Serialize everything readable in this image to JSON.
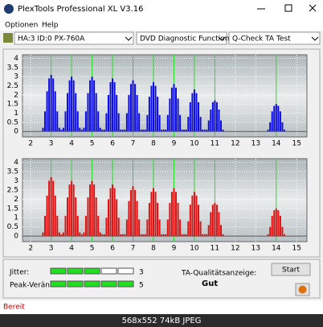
{
  "window": {
    "title": "PlexTools Professional XL V3.16",
    "menu": [
      "Optionen",
      "Help"
    ],
    "drive": "HA:3 ID:0 PX-760A",
    "function": "DVD Diagnostic Functions",
    "test": "Q-Check TA Test"
  },
  "chart_data": [
    {
      "type": "bar",
      "color": "#0a0ae6",
      "grid": true,
      "vlines": [
        3,
        4,
        5,
        6,
        7,
        8,
        9,
        10,
        11,
        14
      ],
      "vline_color": "#22dd22",
      "xlim": [
        1.6,
        15.5
      ],
      "ylim": [
        -0.3,
        4.2
      ],
      "xticks": [
        2,
        3,
        4,
        5,
        6,
        7,
        8,
        9,
        10,
        11,
        12,
        13,
        14,
        15
      ],
      "yticks": [
        0,
        0.5,
        1,
        1.5,
        2,
        2.5,
        3,
        3.5,
        4
      ],
      "x": [
        2.5,
        2.6,
        2.7,
        2.8,
        2.9,
        3.0,
        3.1,
        3.2,
        3.3,
        3.4,
        3.5,
        3.6,
        3.7,
        3.8,
        3.9,
        4.0,
        4.1,
        4.2,
        4.3,
        4.4,
        4.5,
        4.6,
        4.7,
        4.8,
        4.9,
        5.0,
        5.1,
        5.2,
        5.3,
        5.4,
        5.5,
        5.6,
        5.7,
        5.8,
        5.9,
        6.0,
        6.1,
        6.2,
        6.3,
        6.4,
        6.5,
        6.6,
        6.7,
        6.8,
        6.9,
        7.0,
        7.1,
        7.2,
        7.3,
        7.4,
        7.5,
        7.6,
        7.7,
        7.8,
        7.9,
        8.0,
        8.1,
        8.2,
        8.3,
        8.4,
        8.5,
        8.6,
        8.7,
        8.8,
        8.9,
        9.0,
        9.1,
        9.2,
        9.3,
        9.4,
        9.5,
        9.6,
        9.7,
        9.8,
        9.9,
        10.0,
        10.1,
        10.2,
        10.3,
        10.4,
        10.5,
        10.6,
        10.7,
        10.8,
        10.9,
        11.0,
        11.1,
        11.2,
        11.3,
        11.4,
        11.5,
        13.5,
        13.6,
        13.7,
        13.8,
        13.9,
        14.0,
        14.1,
        14.2,
        14.3,
        14.4,
        14.5
      ],
      "values": [
        0,
        0.2,
        1.1,
        2.2,
        2.9,
        3.1,
        2.9,
        2.2,
        1.1,
        0.2,
        0.1,
        0.2,
        1.1,
        2.1,
        2.8,
        3.0,
        2.8,
        2.1,
        1.1,
        0.2,
        0.1,
        0.2,
        1.1,
        2.1,
        2.8,
        3.0,
        2.8,
        2.1,
        1.1,
        0.2,
        0.1,
        0.1,
        1.0,
        2.0,
        2.7,
        2.9,
        2.7,
        2.0,
        1.0,
        0.1,
        0.1,
        0.1,
        1.0,
        2.0,
        2.6,
        2.8,
        2.6,
        2.0,
        1.0,
        0.1,
        0.1,
        0.1,
        0.9,
        1.9,
        2.5,
        2.7,
        2.5,
        1.9,
        0.9,
        0.1,
        0.1,
        0.1,
        0.9,
        1.8,
        2.4,
        2.6,
        2.4,
        1.8,
        0.9,
        0.1,
        0.1,
        0.1,
        0.8,
        1.6,
        2.1,
        2.3,
        2.1,
        1.6,
        0.8,
        0.1,
        0.1,
        0.1,
        0.6,
        1.2,
        1.6,
        1.7,
        1.6,
        1.2,
        0.6,
        0.1,
        0,
        0,
        0.1,
        0.5,
        1.1,
        1.4,
        1.5,
        1.4,
        1.1,
        0.5,
        0.1,
        0
      ]
    },
    {
      "type": "bar",
      "color": "#e01010",
      "grid": true,
      "vlines": [
        3,
        4,
        5,
        6,
        7,
        8,
        9,
        10,
        11,
        14
      ],
      "vline_color": "#22dd22",
      "xlim": [
        1.6,
        15.5
      ],
      "ylim": [
        -0.3,
        4.2
      ],
      "xticks": [
        2,
        3,
        4,
        5,
        6,
        7,
        8,
        9,
        10,
        11,
        12,
        13,
        14,
        15
      ],
      "yticks": [
        0,
        0.5,
        1,
        1.5,
        2,
        2.5,
        3,
        3.5,
        4
      ],
      "x": [
        2.5,
        2.6,
        2.7,
        2.8,
        2.9,
        3.0,
        3.1,
        3.2,
        3.3,
        3.4,
        3.5,
        3.6,
        3.7,
        3.8,
        3.9,
        4.0,
        4.1,
        4.2,
        4.3,
        4.4,
        4.5,
        4.6,
        4.7,
        4.8,
        4.9,
        5.0,
        5.1,
        5.2,
        5.3,
        5.4,
        5.5,
        5.6,
        5.7,
        5.8,
        5.9,
        6.0,
        6.1,
        6.2,
        6.3,
        6.4,
        6.5,
        6.6,
        6.7,
        6.8,
        6.9,
        7.0,
        7.1,
        7.2,
        7.3,
        7.4,
        7.5,
        7.6,
        7.7,
        7.8,
        7.9,
        8.0,
        8.1,
        8.2,
        8.3,
        8.4,
        8.5,
        8.6,
        8.7,
        8.8,
        8.9,
        9.0,
        9.1,
        9.2,
        9.3,
        9.4,
        9.5,
        9.6,
        9.7,
        9.8,
        9.9,
        10.0,
        10.1,
        10.2,
        10.3,
        10.4,
        10.5,
        10.6,
        10.7,
        10.8,
        10.9,
        11.0,
        11.1,
        11.2,
        11.3,
        11.4,
        11.5,
        13.5,
        13.6,
        13.7,
        13.8,
        13.9,
        14.0,
        14.1,
        14.2,
        14.3,
        14.4,
        14.5
      ],
      "values": [
        0,
        0.2,
        1.1,
        2.2,
        3.0,
        3.2,
        3.0,
        2.2,
        1.1,
        0.2,
        0.1,
        0.2,
        1.1,
        2.1,
        2.8,
        3.0,
        2.8,
        2.1,
        1.1,
        0.2,
        0.1,
        0.2,
        1.1,
        2.1,
        2.8,
        3.0,
        2.8,
        2.1,
        1.1,
        0.2,
        0.1,
        0.1,
        1.0,
        2.0,
        2.6,
        2.8,
        2.6,
        2.0,
        1.0,
        0.1,
        0.1,
        0.1,
        0.9,
        1.9,
        2.5,
        2.7,
        2.5,
        1.9,
        0.9,
        0.1,
        0.1,
        0.1,
        0.9,
        1.8,
        2.4,
        2.6,
        2.4,
        1.8,
        0.9,
        0.1,
        0.1,
        0.1,
        0.9,
        1.8,
        2.4,
        2.6,
        2.4,
        1.8,
        0.9,
        0.1,
        0.1,
        0.1,
        0.8,
        1.7,
        2.2,
        2.4,
        2.2,
        1.7,
        0.8,
        0.1,
        0.1,
        0.1,
        0.6,
        1.3,
        1.7,
        1.8,
        1.7,
        1.3,
        0.6,
        0.1,
        0,
        0,
        0.1,
        0.5,
        1.1,
        1.4,
        1.5,
        1.4,
        1.1,
        0.5,
        0.1,
        0
      ]
    }
  ],
  "quality": {
    "jitter_label": "Jitter:",
    "jitter": 3,
    "peak_label": "Peak-Veränd",
    "peak": 5,
    "segments": 5,
    "ta_label": "TA-Qualitätsanzeige:",
    "ta_value": "Gut",
    "start": "Start"
  },
  "status": "Bereit",
  "caption": "568x552 74kB JPEG"
}
